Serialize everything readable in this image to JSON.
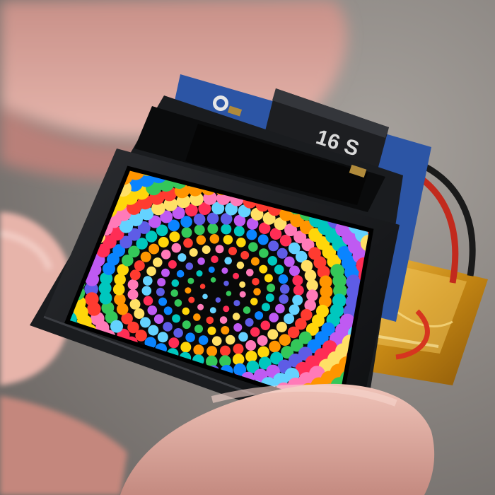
{
  "scene": {
    "description_text": "",
    "sd_card_text": "16 S",
    "colors": {
      "background": "#8f8a86",
      "skin": "#d9a59c",
      "skin_shadow": "#b87e76",
      "pcb_blue": "#2c55a5",
      "module_black": "#151618",
      "battery_gold": "#d59a1c",
      "wire_red": "#c22a1d",
      "wire_black": "#1a1a1a"
    },
    "spiral_palette": [
      "#ff3b30",
      "#ff9500",
      "#ffd60a",
      "#34c759",
      "#00c7be",
      "#0a84ff",
      "#5e5ce6",
      "#bf5af2",
      "#ff2d55",
      "#64d2ff",
      "#ffe066",
      "#ff7ab8"
    ]
  }
}
